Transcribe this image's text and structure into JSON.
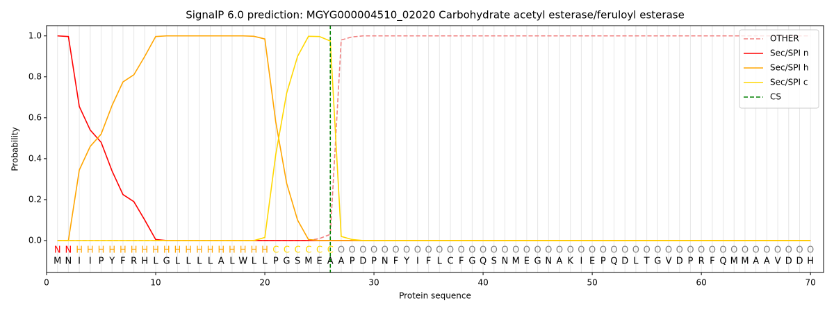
{
  "chart_data": {
    "type": "line",
    "title": "SignalP 6.0 prediction: MGYG000004510_02020 Carbohydrate acetyl esterase/feruloyl esterase",
    "xlabel": "Protein sequence",
    "ylabel": "Probability",
    "x": [
      1,
      2,
      3,
      4,
      5,
      6,
      7,
      8,
      9,
      10,
      11,
      12,
      13,
      14,
      15,
      16,
      17,
      18,
      19,
      20,
      21,
      22,
      23,
      24,
      25,
      26,
      27,
      28,
      29,
      30,
      31,
      32,
      33,
      34,
      35,
      36,
      37,
      38,
      39,
      40,
      41,
      42,
      43,
      44,
      45,
      46,
      47,
      48,
      49,
      50,
      51,
      52,
      53,
      54,
      55,
      56,
      57,
      58,
      59,
      60,
      61,
      62,
      63,
      64,
      65,
      66,
      67,
      68,
      69,
      70
    ],
    "sequence": [
      "M",
      "N",
      "I",
      "I",
      "P",
      "Y",
      "F",
      "R",
      "H",
      "L",
      "G",
      "L",
      "L",
      "L",
      "L",
      "A",
      "L",
      "W",
      "L",
      "L",
      "P",
      "G",
      "S",
      "M",
      "E",
      "A",
      "A",
      "P",
      "D",
      "P",
      "N",
      "F",
      "Y",
      "I",
      "F",
      "L",
      "C",
      "F",
      "G",
      "Q",
      "S",
      "N",
      "M",
      "E",
      "G",
      "N",
      "A",
      "K",
      "I",
      "E",
      "P",
      "Q",
      "D",
      "L",
      "T",
      "G",
      "V",
      "D",
      "P",
      "R",
      "F",
      "Q",
      "M",
      "M",
      "A",
      "A",
      "V",
      "D",
      "D",
      "H"
    ],
    "labels": [
      "N",
      "N",
      "H",
      "H",
      "H",
      "H",
      "H",
      "H",
      "H",
      "H",
      "H",
      "H",
      "H",
      "H",
      "H",
      "H",
      "H",
      "H",
      "H",
      "H",
      "C",
      "C",
      "C",
      "C",
      "C",
      "C",
      "O",
      "O",
      "O",
      "O",
      "O",
      "O",
      "O",
      "O",
      "O",
      "O",
      "O",
      "O",
      "O",
      "O",
      "O",
      "O",
      "O",
      "O",
      "O",
      "O",
      "O",
      "O",
      "O",
      "O",
      "O",
      "O",
      "O",
      "O",
      "O",
      "O",
      "O",
      "O",
      "O",
      "O",
      "O",
      "O",
      "O",
      "O",
      "O",
      "O",
      "O",
      "O",
      "O",
      "O"
    ],
    "label_colors": {
      "N": "#ff0000",
      "H": "#ffa500",
      "C": "#ffd700",
      "O": "#808080"
    },
    "series": [
      {
        "name": "OTHER",
        "color": "#f08080",
        "dashed": true,
        "values": [
          0,
          0,
          0,
          0,
          0,
          0,
          0,
          0,
          0,
          0,
          0,
          0,
          0,
          0,
          0,
          0,
          0,
          0,
          0,
          0,
          0,
          0,
          0,
          0,
          0.01,
          0.03,
          0.98,
          0.995,
          1,
          1,
          1,
          1,
          1,
          1,
          1,
          1,
          1,
          1,
          1,
          1,
          1,
          1,
          1,
          1,
          1,
          1,
          1,
          1,
          1,
          1,
          1,
          1,
          1,
          1,
          1,
          1,
          1,
          1,
          1,
          1,
          1,
          1,
          1,
          1,
          1,
          1,
          1,
          1,
          1,
          1
        ]
      },
      {
        "name": "Sec/SPI n",
        "color": "#ff0000",
        "dashed": false,
        "values": [
          1,
          0.997,
          0.655,
          0.54,
          0.48,
          0.34,
          0.225,
          0.19,
          0.1,
          0.005,
          0,
          0,
          0,
          0,
          0,
          0,
          0,
          0,
          0,
          0,
          0,
          0,
          0,
          0,
          0,
          0,
          0,
          0,
          0,
          0,
          0,
          0,
          0,
          0,
          0,
          0,
          0,
          0,
          0,
          0,
          0,
          0,
          0,
          0,
          0,
          0,
          0,
          0,
          0,
          0,
          0,
          0,
          0,
          0,
          0,
          0,
          0,
          0,
          0,
          0,
          0,
          0,
          0,
          0,
          0,
          0,
          0,
          0,
          0,
          0
        ]
      },
      {
        "name": "Sec/SPI h",
        "color": "#ffa500",
        "dashed": false,
        "values": [
          0,
          0,
          0.345,
          0.46,
          0.52,
          0.66,
          0.775,
          0.81,
          0.9,
          0.997,
          1,
          1,
          1,
          1,
          1,
          1,
          1,
          1,
          0.998,
          0.985,
          0.58,
          0.28,
          0.1,
          0.005,
          0,
          0,
          0,
          0,
          0,
          0,
          0,
          0,
          0,
          0,
          0,
          0,
          0,
          0,
          0,
          0,
          0,
          0,
          0,
          0,
          0,
          0,
          0,
          0,
          0,
          0,
          0,
          0,
          0,
          0,
          0,
          0,
          0,
          0,
          0,
          0,
          0,
          0,
          0,
          0,
          0,
          0,
          0,
          0,
          0,
          0
        ]
      },
      {
        "name": "Sec/SPI c",
        "color": "#ffd700",
        "dashed": false,
        "values": [
          0,
          0,
          0,
          0,
          0,
          0,
          0,
          0,
          0,
          0,
          0,
          0,
          0,
          0,
          0,
          0,
          0,
          0,
          0,
          0.015,
          0.42,
          0.72,
          0.9,
          0.998,
          0.997,
          0.975,
          0.02,
          0.005,
          0,
          0,
          0,
          0,
          0,
          0,
          0,
          0,
          0,
          0,
          0,
          0,
          0,
          0,
          0,
          0,
          0,
          0,
          0,
          0,
          0,
          0,
          0,
          0,
          0,
          0,
          0,
          0,
          0,
          0,
          0,
          0,
          0,
          0,
          0,
          0,
          0,
          0,
          0,
          0,
          0,
          0
        ]
      }
    ],
    "cs": {
      "name": "CS",
      "color": "#008000",
      "x": 26
    },
    "xlim": [
      0,
      71.2
    ],
    "ylim": [
      -0.156,
      1.05
    ],
    "xticks": [
      0,
      10,
      20,
      30,
      40,
      50,
      60,
      70
    ],
    "yticks": [
      {
        "value": 0,
        "label": "0.0"
      },
      0.2,
      0.4,
      0.6,
      0.8,
      {
        "value": 1,
        "label": "1.0"
      }
    ],
    "grid": true,
    "legend": "upper right"
  }
}
